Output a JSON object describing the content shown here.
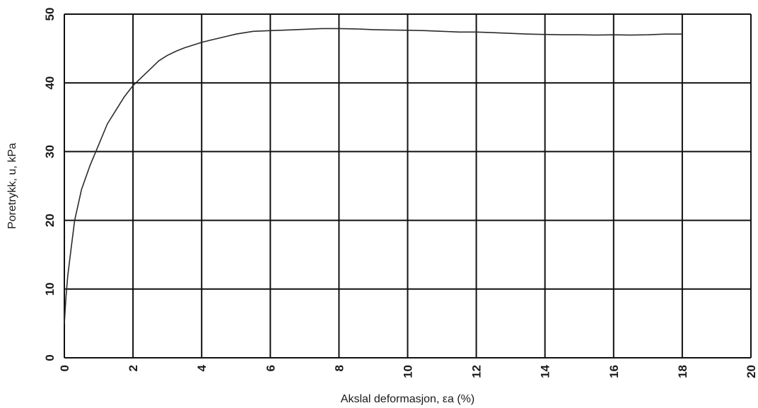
{
  "chart_data": {
    "type": "line",
    "title": "",
    "xlabel": "Akslal deformasjon, εa (%)",
    "ylabel": "Poretrykk, u, kPa",
    "xlim": [
      0,
      20
    ],
    "ylim": [
      0,
      50
    ],
    "x_ticks": [
      "0",
      "2",
      "4",
      "6",
      "8",
      "10",
      "12",
      "14",
      "16",
      "18",
      "20"
    ],
    "y_ticks": [
      "0",
      "10",
      "20",
      "30",
      "40",
      "50"
    ],
    "grid": true,
    "legend": "none",
    "line_color": "#2b2b2b",
    "series": [
      {
        "x": [
          0,
          0.05,
          0.1,
          0.2,
          0.3,
          0.5,
          0.75,
          1.0,
          1.25,
          1.5,
          1.75,
          2.0,
          2.25,
          2.5,
          2.75,
          3.0,
          3.25,
          3.5,
          3.75,
          4.0,
          4.25,
          4.5,
          4.75,
          5.0,
          5.5,
          6.0,
          6.5,
          7.0,
          7.5,
          8.0,
          8.5,
          9.0,
          9.5,
          10.0,
          10.5,
          11.0,
          11.5,
          12.0,
          12.5,
          13.0,
          13.5,
          14.0,
          14.5,
          15.0,
          15.5,
          16.0,
          16.5,
          17.0,
          17.5,
          18.0
        ],
        "y": [
          5,
          9,
          12,
          16,
          20,
          24.5,
          28,
          31,
          34,
          36,
          38,
          39.6,
          40.8,
          42,
          43.2,
          44,
          44.6,
          45.1,
          45.5,
          45.9,
          46.2,
          46.5,
          46.8,
          47.1,
          47.5,
          47.6,
          47.7,
          47.8,
          47.9,
          47.9,
          47.85,
          47.75,
          47.7,
          47.65,
          47.6,
          47.5,
          47.4,
          47.4,
          47.3,
          47.2,
          47.1,
          47.05,
          47.0,
          47.0,
          46.95,
          47.0,
          46.95,
          47.0,
          47.1,
          47.1
        ]
      }
    ]
  }
}
